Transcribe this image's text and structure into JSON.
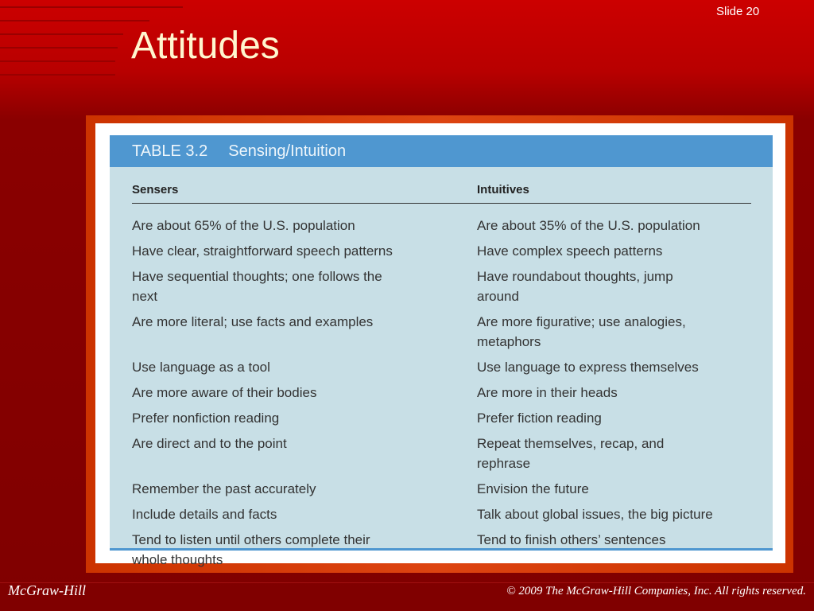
{
  "slide": {
    "title": "Attitudes",
    "number_label": "Slide 20"
  },
  "table": {
    "label": "TABLE 3.2",
    "caption": "Sensing/Intuition",
    "columns": [
      "Sensers",
      "Intuitives"
    ],
    "rows": [
      [
        "Are about 65% of the U.S. population",
        "Are about 35% of the U.S. population"
      ],
      [
        "Have clear, straightforward speech patterns",
        "Have complex speech patterns"
      ],
      [
        "Have sequential thoughts; one follows the next",
        "Have roundabout thoughts, jump around"
      ],
      [
        "Are more literal; use facts and examples",
        "Are more figurative; use analogies, metaphors"
      ],
      [
        "Use language as a tool",
        "Use language to express themselves"
      ],
      [
        "Are more aware of their bodies",
        "Are more in their heads"
      ],
      [
        "Prefer nonfiction reading",
        "Prefer fiction reading"
      ],
      [
        "Are direct and to the point",
        "Repeat themselves, recap, and rephrase"
      ],
      [
        "Remember the past accurately",
        "Envision the future"
      ],
      [
        "Include details and facts",
        "Talk about global issues, the big picture"
      ],
      [
        "Tend to listen until others complete their whole thoughts",
        "Tend to finish others’ sentences"
      ]
    ]
  },
  "footer": {
    "brand": "McGraw-Hill",
    "copyright": "© 2009 The McGraw-Hill Companies, Inc. All rights reserved."
  },
  "colors": {
    "background": "#b00000",
    "table_header": "#4f97d0",
    "table_body": "#c8dfe6",
    "title": "#fff6cf"
  }
}
